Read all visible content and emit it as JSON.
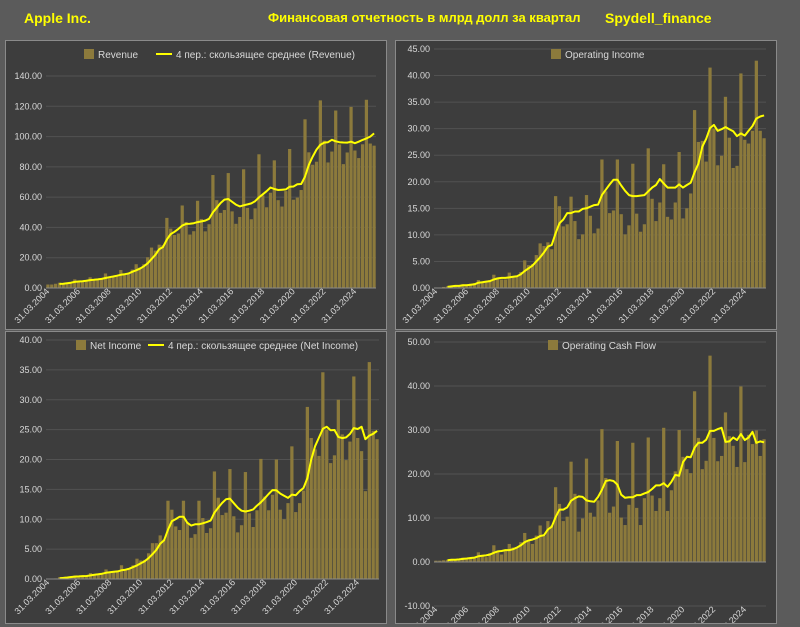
{
  "header": {
    "company": "Apple Inc.",
    "title": "Финансовая отчетность в млрд долл за квартал",
    "brand": "Spydell_finance"
  },
  "colors": {
    "bar": "#8c7a3c",
    "line": "#ffff00",
    "panel": "#3d3d3d",
    "grid": "#525252",
    "text": "#d9d9d9"
  },
  "x_tick_labels": [
    "31.03.2004",
    "31.03.2006",
    "31.03.2008",
    "31.03.2010",
    "31.03.2012",
    "31.03.2014",
    "31.03.2016",
    "31.03.2018",
    "31.03.2020",
    "31.03.2022",
    "31.03.2024"
  ],
  "chart_data": [
    {
      "type": "bar",
      "bar_series_name": "Revenue",
      "line_series_name": "4 пер.: скользящее среднее (Revenue)",
      "ylim": [
        0,
        140
      ],
      "ytick_step": 20,
      "ytick_labels": [
        "0.00",
        "20.00",
        "40.00",
        "60.00",
        "80.00",
        "100.00",
        "120.00",
        "140.00"
      ],
      "values": [
        2.3,
        2.3,
        2.8,
        3.5,
        3.2,
        3.5,
        3.7,
        5.7,
        4.4,
        4.4,
        4.8,
        7.1,
        5.3,
        5.4,
        6.2,
        9.6,
        7.5,
        7.5,
        8.0,
        11.9,
        9.1,
        9.7,
        12.2,
        15.7,
        13.5,
        15.7,
        20.3,
        26.7,
        24.7,
        28.6,
        28.3,
        46.3,
        39.2,
        35.0,
        36.0,
        54.5,
        43.6,
        35.3,
        37.5,
        57.6,
        45.6,
        37.4,
        42.1,
        74.6,
        58.0,
        49.6,
        51.5,
        75.9,
        50.6,
        42.4,
        46.9,
        78.4,
        52.9,
        45.4,
        52.6,
        88.3,
        61.1,
        53.3,
        62.9,
        84.3,
        58.0,
        53.8,
        64.0,
        91.8,
        58.3,
        59.7,
        64.7,
        111.4,
        89.6,
        81.4,
        83.4,
        123.9,
        97.3,
        82.9,
        90.1,
        117.2,
        94.8,
        81.8,
        89.5,
        119.6,
        90.8,
        85.8,
        94.9,
        124.3,
        95.4,
        94.0
      ],
      "moving_average": [
        null,
        null,
        null,
        2.7,
        2.8,
        3.2,
        3.5,
        4.0,
        4.3,
        4.5,
        4.8,
        5.2,
        5.4,
        5.7,
        6.0,
        6.6,
        7.1,
        7.6,
        8.1,
        8.7,
        9.1,
        9.6,
        10.7,
        11.7,
        12.8,
        14.3,
        16.3,
        19.1,
        21.9,
        25.6,
        27.1,
        32.0,
        35.6,
        37.1,
        39.0,
        41.2,
        42.3,
        42.4,
        42.8,
        43.5,
        44.0,
        44.5,
        45.7,
        49.9,
        53.0,
        56.1,
        58.4,
        58.8,
        56.9,
        55.1,
        53.9,
        54.6,
        55.2,
        55.9,
        57.3,
        59.8,
        61.9,
        63.9,
        66.4,
        65.4,
        64.7,
        64.9,
        65.1,
        66.9,
        67.0,
        68.5,
        68.7,
        73.5,
        81.3,
        86.8,
        91.4,
        94.6,
        96.0,
        96.3,
        97.9,
        96.9,
        96.3,
        96.1,
        96.0,
        96.6,
        95.6,
        96.6,
        97.8,
        98.8,
        100.0,
        102.1
      ]
    },
    {
      "type": "bar",
      "bar_series_name": "Operating Income",
      "ylim": [
        0,
        45
      ],
      "ytick_step": 5,
      "ytick_labels": [
        "0.00",
        "5.00",
        "10.00",
        "15.00",
        "20.00",
        "25.00",
        "30.00",
        "35.00",
        "40.00",
        "45.00"
      ],
      "values": [
        0.1,
        0.1,
        0.2,
        0.3,
        0.3,
        0.4,
        0.4,
        0.7,
        0.7,
        0.8,
        0.9,
        1.5,
        1.1,
        1.2,
        1.5,
        2.5,
        2.0,
        1.6,
        1.6,
        2.9,
        2.1,
        2.3,
        3.0,
        5.2,
        4.3,
        4.5,
        6.2,
        8.4,
        7.9,
        8.6,
        7.3,
        17.3,
        15.4,
        11.6,
        12.0,
        17.2,
        12.6,
        9.2,
        10.1,
        17.5,
        13.6,
        10.3,
        11.2,
        24.2,
        18.2,
        14.1,
        14.6,
        24.2,
        13.9,
        10.1,
        11.8,
        23.4,
        14.0,
        10.6,
        12.0,
        26.3,
        16.8,
        12.6,
        16.1,
        23.3,
        13.4,
        12.9,
        16.1,
        25.6,
        13.1,
        15.0,
        17.8,
        33.5,
        27.5,
        27.7,
        23.8,
        41.5,
        30.0,
        23.1,
        24.9,
        36.0,
        28.3,
        22.6,
        23.0,
        40.4,
        27.9,
        27.2,
        29.6,
        42.8,
        29.6,
        28.2
      ],
      "moving_average": [
        null,
        null,
        null,
        0.2,
        0.3,
        0.4,
        0.4,
        0.5,
        0.5,
        0.6,
        0.7,
        1.0,
        1.1,
        1.2,
        1.3,
        1.6,
        1.8,
        1.9,
        1.9,
        2.0,
        2.1,
        2.2,
        2.6,
        3.2,
        3.7,
        4.2,
        5.0,
        5.8,
        6.7,
        7.8,
        8.1,
        10.3,
        12.2,
        12.9,
        14.1,
        14.1,
        14.4,
        14.4,
        14.9,
        15.0,
        15.3,
        15.6,
        15.7,
        17.5,
        18.5,
        19.5,
        20.4,
        20.4,
        19.3,
        18.3,
        17.5,
        17.3,
        17.3,
        17.4,
        17.5,
        18.2,
        18.9,
        19.4,
        20.5,
        19.7,
        18.9,
        18.9,
        18.9,
        19.5,
        18.9,
        19.4,
        19.8,
        21.8,
        23.4,
        26.6,
        28.1,
        30.1,
        30.7,
        29.6,
        29.9,
        30.3,
        29.9,
        29.5,
        28.6,
        29.1,
        28.7,
        29.6,
        30.5,
        31.9,
        32.3,
        32.5
      ]
    },
    {
      "type": "bar",
      "bar_series_name": "Net Income",
      "line_series_name": "4 пер.: скользящее среднее (Net Income)",
      "ylim": [
        0,
        40
      ],
      "ytick_step": 5,
      "ytick_labels": [
        "0.00",
        "5.00",
        "10.00",
        "15.00",
        "20.00",
        "25.00",
        "30.00",
        "35.00",
        "40.00"
      ],
      "values": [
        0.05,
        0.06,
        0.1,
        0.3,
        0.3,
        0.3,
        0.4,
        0.6,
        0.4,
        0.5,
        0.5,
        1.0,
        0.8,
        0.8,
        0.9,
        1.6,
        1.2,
        1.1,
        1.2,
        2.3,
        1.6,
        1.8,
        2.3,
        3.4,
        3.1,
        3.2,
        4.3,
        6.0,
        6.0,
        7.3,
        6.6,
        13.1,
        11.6,
        8.8,
        8.2,
        13.1,
        9.5,
        6.9,
        7.5,
        13.1,
        10.2,
        7.7,
        8.5,
        18.0,
        13.6,
        10.7,
        11.1,
        18.4,
        10.5,
        7.8,
        9.0,
        17.9,
        11.0,
        8.7,
        11.5,
        20.1,
        13.8,
        11.5,
        14.1,
        20.0,
        11.6,
        10.0,
        12.7,
        22.2,
        11.2,
        12.7,
        14.8,
        28.8,
        23.6,
        21.7,
        20.6,
        34.6,
        25.0,
        19.4,
        20.7,
        30.0,
        24.2,
        19.9,
        23.0,
        33.9,
        23.6,
        21.4,
        14.7,
        36.3,
        24.8,
        23.4
      ],
      "moving_average": [
        null,
        null,
        null,
        0.13,
        0.19,
        0.25,
        0.33,
        0.4,
        0.43,
        0.48,
        0.5,
        0.6,
        0.7,
        0.78,
        0.88,
        1.03,
        1.13,
        1.2,
        1.28,
        1.45,
        1.55,
        1.73,
        2.0,
        2.28,
        2.65,
        2.98,
        3.5,
        4.15,
        4.88,
        5.9,
        6.48,
        8.25,
        9.65,
        10.03,
        10.43,
        10.43,
        9.4,
        8.93,
        9.15,
        9.15,
        9.33,
        9.53,
        9.78,
        11.1,
        11.95,
        12.73,
        13.35,
        13.45,
        12.68,
        11.95,
        11.43,
        11.3,
        11.43,
        11.65,
        12.28,
        12.83,
        13.53,
        14.23,
        14.88,
        14.85,
        14.3,
        13.93,
        13.58,
        14.13,
        14.03,
        14.7,
        15.23,
        16.88,
        19.98,
        22.23,
        23.68,
        25.13,
        25.48,
        24.9,
        24.93,
        23.78,
        23.58,
        23.7,
        24.28,
        25.25,
        25.1,
        25.48,
        23.4,
        24.0,
        24.3,
        24.8
      ]
    },
    {
      "type": "bar",
      "bar_series_name": "Operating Cash Flow",
      "ylim": [
        -10,
        50
      ],
      "ytick_step": 10,
      "ytick_labels": [
        "-10.00",
        "0.00",
        "10.00",
        "20.00",
        "30.00",
        "40.00",
        "50.00"
      ],
      "values": [
        0.3,
        0.3,
        0.4,
        0.5,
        0.6,
        0.6,
        0.7,
        1.0,
        0.9,
        0.8,
        1.1,
        2.2,
        1.4,
        1.1,
        2.0,
        3.8,
        2.6,
        1.7,
        2.5,
        4.1,
        3.3,
        3.4,
        4.5,
        6.6,
        5.0,
        4.1,
        6.0,
        8.3,
        6.0,
        9.3,
        8.3,
        17.0,
        13.2,
        9.3,
        10.3,
        22.8,
        15.5,
        6.9,
        9.9,
        23.5,
        11.2,
        10.3,
        14.0,
        30.2,
        19.1,
        11.2,
        12.6,
        27.5,
        10.1,
        8.4,
        13.0,
        27.1,
        12.3,
        8.4,
        14.5,
        28.3,
        15.1,
        11.6,
        14.5,
        30.5,
        11.6,
        16.3,
        20.6,
        30.0,
        23.9,
        21.1,
        20.2,
        38.8,
        28.2,
        21.1,
        23.0,
        46.9,
        28.2,
        22.9,
        24.1,
        34.0,
        28.6,
        26.4,
        21.6,
        39.9,
        22.7,
        28.9,
        26.8,
        29.9,
        24.1,
        27.9
      ],
      "moving_average": [
        null,
        null,
        null,
        0.4,
        0.5,
        0.5,
        0.6,
        0.7,
        0.8,
        0.9,
        1.0,
        1.3,
        1.4,
        1.5,
        1.7,
        2.1,
        2.4,
        2.5,
        2.7,
        2.7,
        2.9,
        3.3,
        3.8,
        4.5,
        4.9,
        5.1,
        5.4,
        5.9,
        6.1,
        7.4,
        8.0,
        10.2,
        11.9,
        11.9,
        12.4,
        13.9,
        14.5,
        14.9,
        14.8,
        14.0,
        13.8,
        13.7,
        14.8,
        16.4,
        18.4,
        18.6,
        18.4,
        17.6,
        15.3,
        14.6,
        14.7,
        14.7,
        15.2,
        15.2,
        15.6,
        15.9,
        16.6,
        17.4,
        17.4,
        17.9,
        17.1,
        18.2,
        19.8,
        19.6,
        22.7,
        23.9,
        23.8,
        26.0,
        27.1,
        27.1,
        27.8,
        29.8,
        29.8,
        30.2,
        30.5,
        27.3,
        27.4,
        28.3,
        27.7,
        29.1,
        27.7,
        28.3,
        29.6,
        27.1,
        27.4,
        27.2
      ]
    }
  ]
}
